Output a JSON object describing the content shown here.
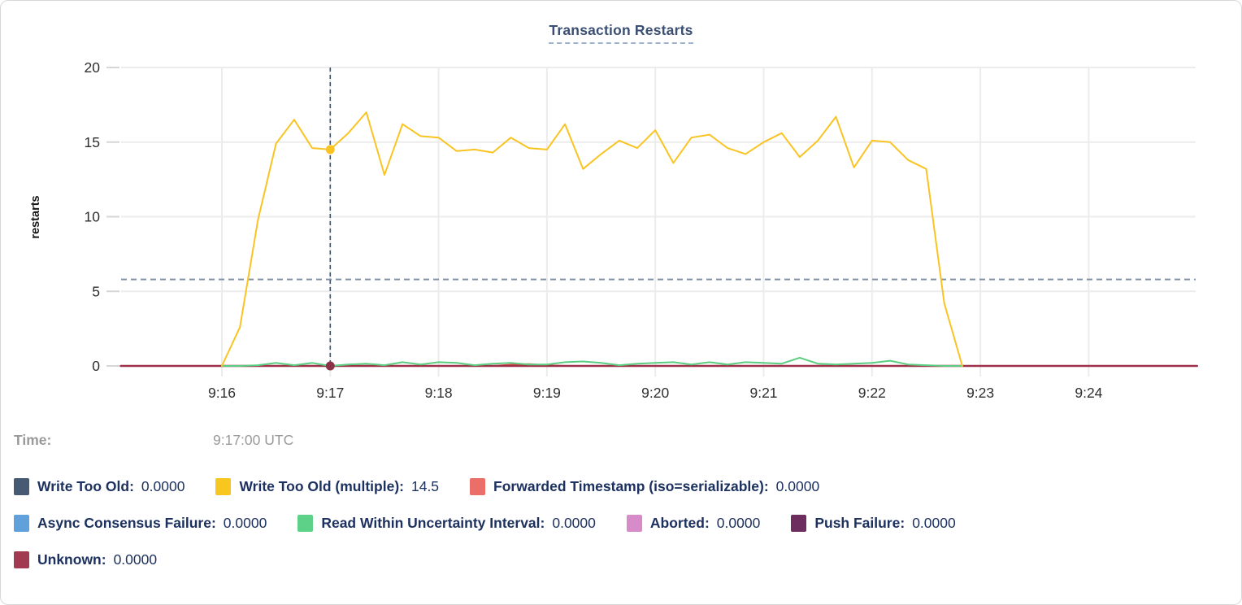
{
  "card": {
    "title": "Transaction Restarts"
  },
  "chart_data": {
    "type": "line",
    "title": "Transaction Restarts",
    "xlabel": "",
    "ylabel": "restarts",
    "ylim": [
      0,
      20
    ],
    "yticks": [
      0,
      5,
      10,
      15,
      20
    ],
    "xticks": [
      "9:16",
      "9:17",
      "9:18",
      "9:19",
      "9:20",
      "9:21",
      "9:22",
      "9:23",
      "9:24"
    ],
    "x_domain": [
      "9:15:04",
      "9:25:00"
    ],
    "grid": true,
    "legend_position": "below",
    "avg_dashed_line_value": 5.8,
    "crosshair_time": "9:17:00",
    "series": [
      {
        "name": "Write Too Old",
        "color": "#475A73",
        "constant": 0
      },
      {
        "name": "Async Consensus Failure",
        "color": "#60A1DC",
        "constant": 0
      },
      {
        "name": "Aborted",
        "color": "#D78BC9",
        "constant": 0
      },
      {
        "name": "Push Failure",
        "color": "#6D2D5E",
        "constant": 0
      },
      {
        "name": "Forwarded Timestamp (iso=serializable)",
        "color": "#E04A47",
        "start": "9:16:00",
        "step_seconds": 10,
        "values": [
          0,
          0,
          0,
          0,
          0,
          0,
          0,
          0,
          0,
          0,
          0,
          0,
          0,
          0,
          0,
          0,
          0.08,
          0.12,
          0.04,
          0,
          0,
          0,
          0,
          0,
          0,
          0,
          0,
          0,
          0,
          0,
          0,
          0,
          0,
          0,
          0,
          0,
          0,
          0,
          0,
          0,
          0,
          0
        ]
      },
      {
        "name": "Unknown",
        "color": "#9E3149",
        "width": 2.5,
        "constant": 0
      },
      {
        "name": "Read Within Uncertainty Interval",
        "color": "#5BCD81",
        "start": "9:16:00",
        "step_seconds": 10,
        "values": [
          0,
          0,
          0.05,
          0.2,
          0.05,
          0.2,
          0,
          0.1,
          0.15,
          0.05,
          0.25,
          0.1,
          0.25,
          0.2,
          0.05,
          0.15,
          0.2,
          0.1,
          0.1,
          0.25,
          0.3,
          0.2,
          0.05,
          0.15,
          0.2,
          0.25,
          0.1,
          0.25,
          0.1,
          0.25,
          0.2,
          0.15,
          0.55,
          0.15,
          0.1,
          0.15,
          0.2,
          0.35,
          0.1,
          0.05,
          0,
          0
        ]
      },
      {
        "name": "Write Too Old (multiple)",
        "color": "#F9C422",
        "start": "9:16:00",
        "step_seconds": 10,
        "values": [
          0,
          2.6,
          9.8,
          14.9,
          16.5,
          14.6,
          14.5,
          15.6,
          17.0,
          12.8,
          16.2,
          15.4,
          15.3,
          14.4,
          14.5,
          14.3,
          15.3,
          14.6,
          14.5,
          16.2,
          13.2,
          14.2,
          15.1,
          14.6,
          15.8,
          13.6,
          15.3,
          15.5,
          14.6,
          14.2,
          15.0,
          15.6,
          14.0,
          15.1,
          16.7,
          13.3,
          15.1,
          15.0,
          13.8,
          13.2,
          4.2,
          0
        ]
      }
    ],
    "markers": [
      {
        "time": "9:17:00",
        "value": 14.5,
        "color": "#F9C422"
      },
      {
        "time": "9:17:00",
        "value": 0,
        "color": "#8C3447"
      }
    ]
  },
  "tooltip": {
    "time_label": "Time:",
    "time_value": "9:17:00 UTC",
    "rows": [
      [
        {
          "label": "Write Too Old:",
          "value": "0.0000",
          "color": "#475A73"
        },
        {
          "label": "Write Too Old (multiple):",
          "value": "14.5",
          "color": "#F8C71F"
        },
        {
          "label": "Forwarded Timestamp (iso=serializable):",
          "value": "0.0000",
          "color": "#EC6E68"
        }
      ],
      [
        {
          "label": "Async Consensus Failure:",
          "value": "0.0000",
          "color": "#60A1DC"
        },
        {
          "label": "Read Within Uncertainty Interval:",
          "value": "0.0000",
          "color": "#5ED188"
        },
        {
          "label": "Aborted:",
          "value": "0.0000",
          "color": "#D78BC9"
        },
        {
          "label": "Push Failure:",
          "value": "0.0000",
          "color": "#6D2D5E"
        }
      ],
      [
        {
          "label": "Unknown:",
          "value": "0.0000",
          "color": "#A23B52"
        }
      ]
    ]
  },
  "colors": {
    "title": "#3a4f73",
    "grid": "#ececec",
    "axis_text": "#2e2e2e",
    "legend_text": "#1d3160",
    "time_text": "#999999",
    "avg_line": "#7e90a8",
    "crosshair": "#3e536f"
  }
}
